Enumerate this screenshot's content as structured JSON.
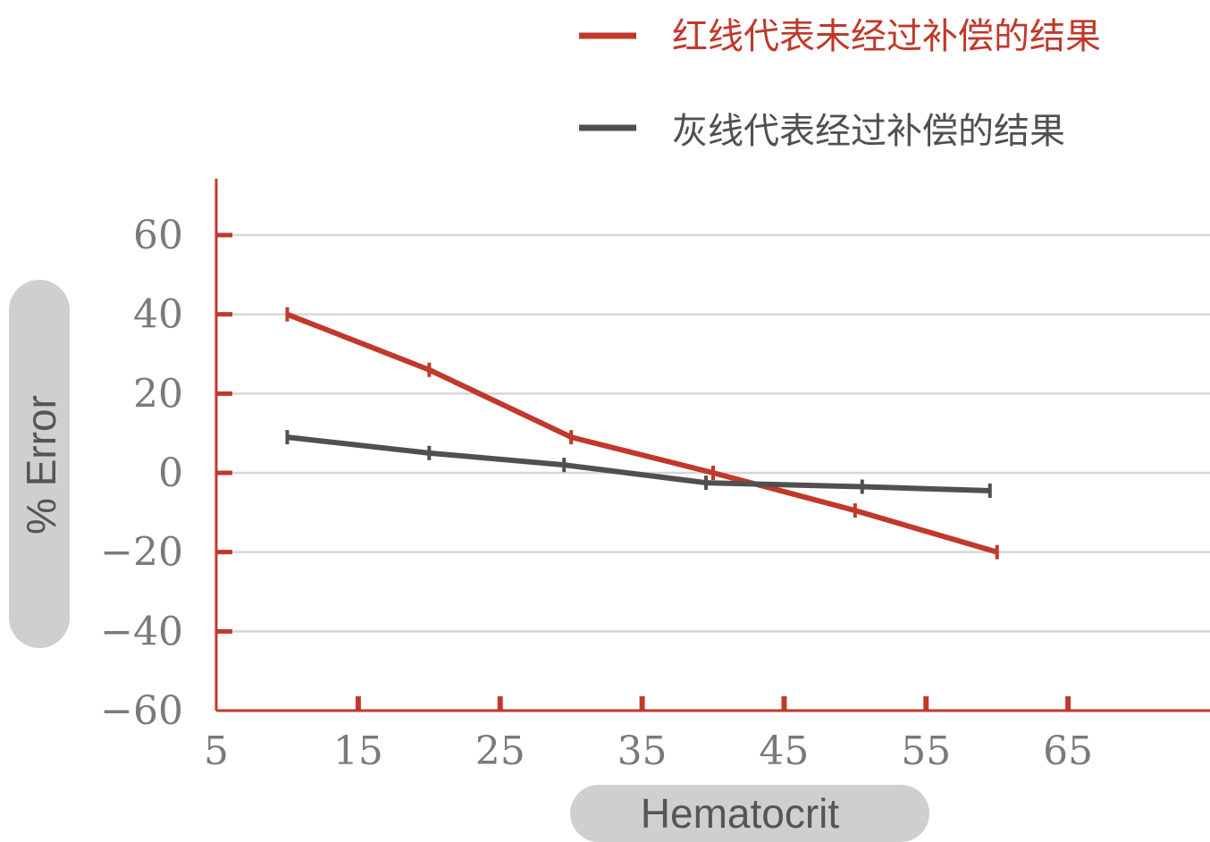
{
  "chart_data": {
    "type": "line",
    "xlabel": "Hematocrit",
    "ylabel": "% Error",
    "xlim": [
      5,
      75
    ],
    "ylim": [
      -60,
      60
    ],
    "x_ticks": [
      5,
      15,
      25,
      35,
      45,
      55,
      65
    ],
    "y_ticks": [
      60,
      40,
      20,
      0,
      -20,
      -40,
      -60
    ],
    "grid": true,
    "legend_position": "top-right",
    "series": [
      {
        "name": "红线代表未经过补偿的结果",
        "color": "#c0392b",
        "x": [
          10,
          20,
          30,
          40,
          50,
          60
        ],
        "y": [
          40,
          26,
          9,
          0,
          -9.5,
          -20
        ]
      },
      {
        "name": "灰线代表经过补偿的结果",
        "color": "#505050",
        "x": [
          10,
          20,
          29.5,
          39.5,
          50.5,
          59.5
        ],
        "y": [
          9,
          5,
          2,
          -2.5,
          -3.5,
          -4.5
        ]
      }
    ]
  }
}
